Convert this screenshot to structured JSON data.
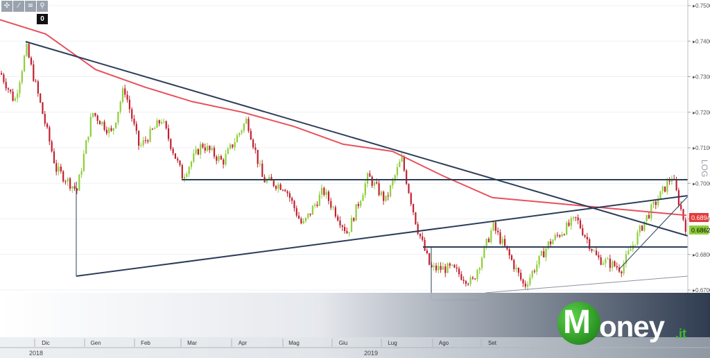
{
  "toolbar": {
    "icons": [
      "crosshair-icon",
      "draw-line-icon",
      "text-icon",
      "search-icon"
    ],
    "badge": "0"
  },
  "logo": {
    "brand_first": "M",
    "brand_rest": "oney",
    "brand_suffix": ".it"
  },
  "chart_data": {
    "type": "candlestick",
    "scale": "log",
    "scale_label": "LOG",
    "ylim": [
      0.67,
      0.75
    ],
    "y_ticks": [
      "0.7500",
      "0.7400",
      "0.7300",
      "0.7200",
      "0.7100",
      "0.7000",
      "0.6900",
      "0.6800",
      "0.6700"
    ],
    "x_ticks": [
      "Dic",
      "Gen",
      "Feb",
      "Mar",
      "Apr",
      "Mag",
      "Giu",
      "Lug",
      "Ago",
      "Set"
    ],
    "year_labels": [
      "2018",
      "2019"
    ],
    "price_labels": [
      {
        "value": "0.6894",
        "color": "#e23b3b"
      },
      {
        "value": "0.6862",
        "color": "#8fce3a"
      }
    ],
    "moving_average": {
      "color": "#e8505b",
      "points": [
        [
          "Nov",
          0.746
        ],
        [
          "Dic",
          0.742
        ],
        [
          "Gen",
          0.732
        ],
        [
          "Feb",
          0.727
        ],
        [
          "Mar",
          0.723
        ],
        [
          "Apr",
          0.72
        ],
        [
          "Mag",
          0.716
        ],
        [
          "Giu",
          0.711
        ],
        [
          "Lug",
          0.709
        ],
        [
          "Ago",
          0.702
        ],
        [
          "Set",
          0.696
        ],
        [
          "Ott",
          0.691
        ]
      ]
    },
    "resistance_level": 0.7005,
    "support_level": 0.6822,
    "colors": {
      "up": "#8fce3a",
      "down": "#c0202e",
      "trendline": "#2b3d58"
    }
  }
}
